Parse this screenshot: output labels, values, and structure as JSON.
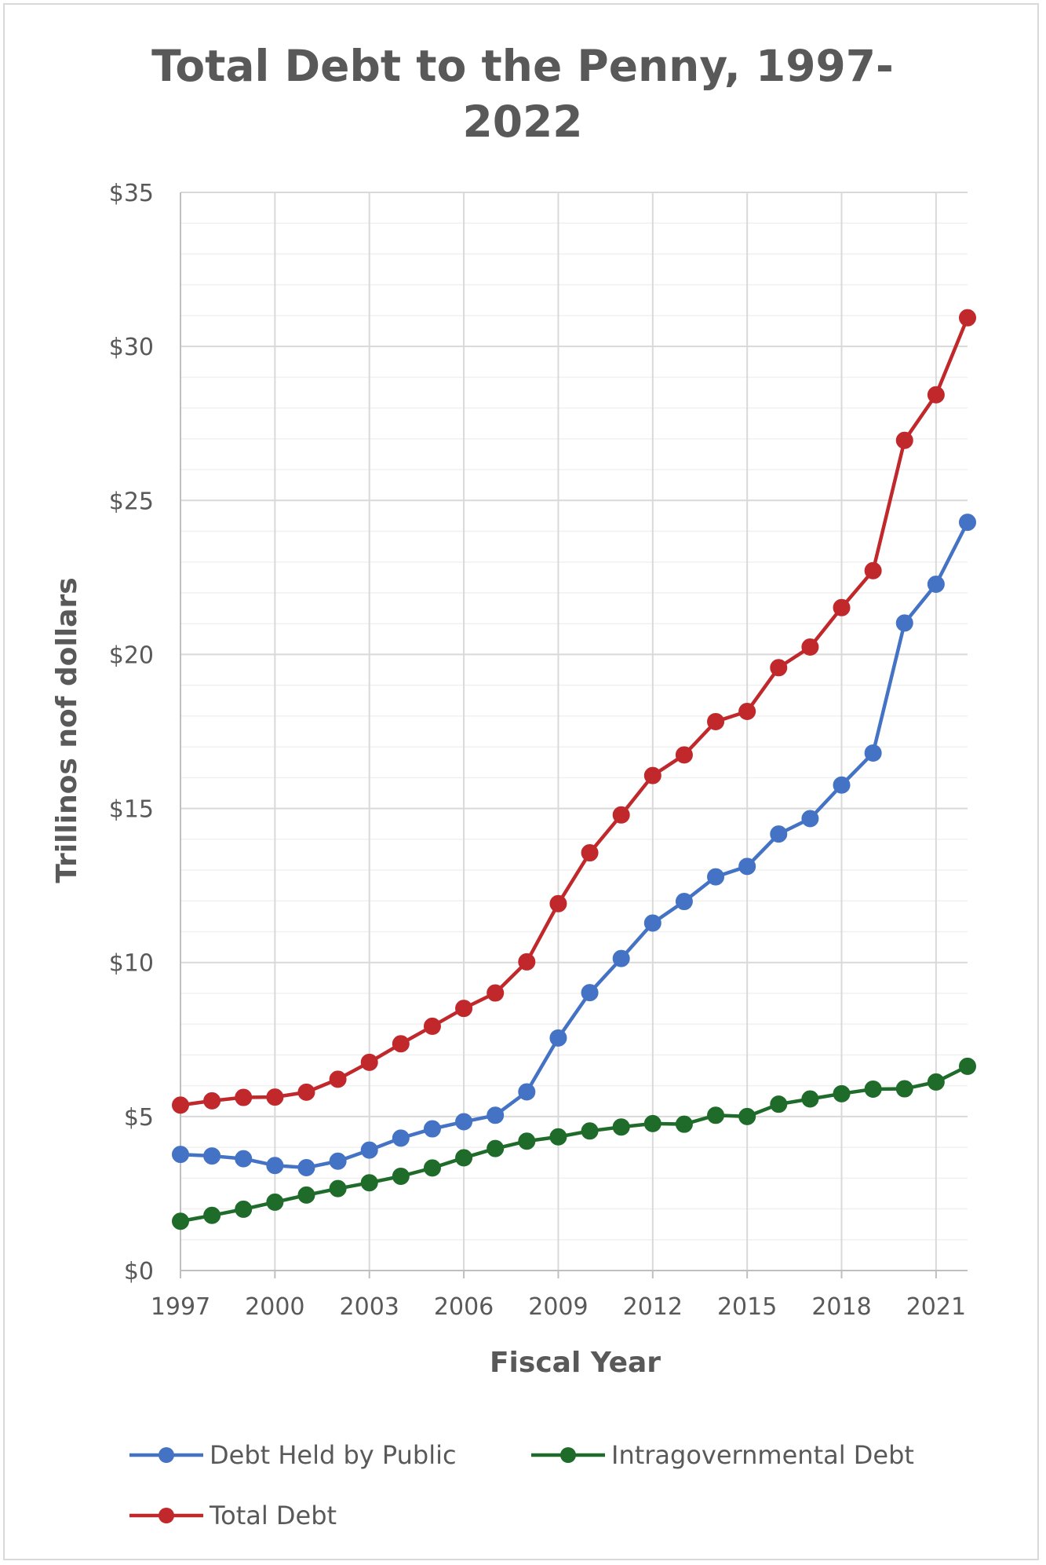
{
  "chart_data": {
    "type": "line",
    "title_line1": "Total Debt to the Penny, 1997-",
    "title_line2": "2022",
    "xlabel": "Fiscal Year",
    "ylabel": "Trillinos nof dollars",
    "x": [
      1997,
      1998,
      1999,
      2000,
      2001,
      2002,
      2003,
      2004,
      2005,
      2006,
      2007,
      2008,
      2009,
      2010,
      2011,
      2012,
      2013,
      2014,
      2015,
      2016,
      2017,
      2018,
      2019,
      2020,
      2021,
      2022
    ],
    "x_tick_labels": [
      "1997",
      "2000",
      "2003",
      "2006",
      "2009",
      "2012",
      "2015",
      "2018",
      "2021"
    ],
    "x_tick_values": [
      1997,
      2000,
      2003,
      2006,
      2009,
      2012,
      2015,
      2018,
      2021
    ],
    "xlim": [
      1997,
      2022
    ],
    "ylim": [
      0,
      35
    ],
    "y_tick_values": [
      0,
      5,
      10,
      15,
      20,
      25,
      30,
      35
    ],
    "y_tick_labels": [
      "$0",
      "$5",
      "$10",
      "$15",
      "$20",
      "$25",
      "$30",
      "$35"
    ],
    "y_minor_step": 1,
    "grid": true,
    "legend_position": "bottom",
    "series": [
      {
        "name": "Debt Held by Public",
        "color": "#4472c4",
        "values": [
          3.77,
          3.72,
          3.63,
          3.41,
          3.34,
          3.55,
          3.91,
          4.3,
          4.6,
          4.83,
          5.04,
          5.8,
          7.55,
          9.02,
          10.13,
          11.28,
          11.98,
          12.78,
          13.12,
          14.17,
          14.67,
          15.76,
          16.8,
          21.02,
          22.28,
          24.29
        ]
      },
      {
        "name": "Intragovernmental Debt",
        "color": "#1e6b2a",
        "values": [
          1.6,
          1.79,
          1.99,
          2.22,
          2.45,
          2.66,
          2.85,
          3.06,
          3.33,
          3.66,
          3.96,
          4.2,
          4.34,
          4.53,
          4.66,
          4.77,
          4.75,
          5.04,
          5.0,
          5.4,
          5.57,
          5.74,
          5.89,
          5.9,
          6.12,
          6.63
        ]
      },
      {
        "name": "Total Debt",
        "color": "#c0282c",
        "values": [
          5.37,
          5.51,
          5.62,
          5.63,
          5.79,
          6.21,
          6.76,
          7.36,
          7.93,
          8.51,
          9.01,
          10.02,
          11.91,
          13.56,
          14.79,
          16.07,
          16.74,
          17.82,
          18.15,
          19.57,
          20.24,
          21.52,
          22.72,
          26.95,
          28.43,
          30.93
        ]
      }
    ]
  }
}
